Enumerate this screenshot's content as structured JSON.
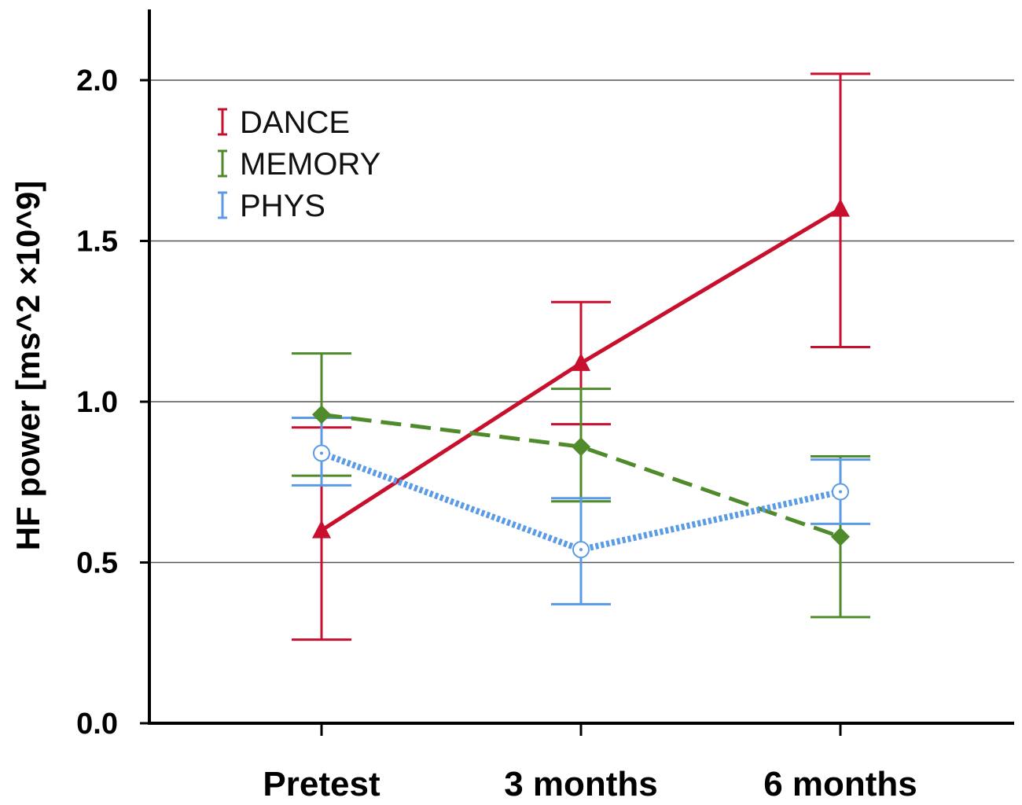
{
  "chart_data": {
    "type": "line",
    "title": "",
    "xlabel": "",
    "ylabel": "HF power [ms^2 ×10^9]",
    "categories": [
      "Pretest",
      "3 months",
      "6 months"
    ],
    "ylim": [
      0.0,
      2.2
    ],
    "yticks": [
      "0.0",
      "0.5",
      "1.0",
      "1.5",
      "2.0"
    ],
    "grid": true,
    "legend_position": "top-left",
    "series": [
      {
        "name": "DANCE",
        "color": "#c8102e",
        "line_style": "solid",
        "marker": "triangle",
        "values": [
          0.6,
          1.12,
          1.6
        ],
        "error_low": [
          0.26,
          0.93,
          1.17
        ],
        "error_high": [
          0.92,
          1.31,
          2.02
        ]
      },
      {
        "name": "MEMORY",
        "color": "#4f8a2b",
        "line_style": "dashed",
        "marker": "diamond",
        "values": [
          0.96,
          0.86,
          0.58
        ],
        "error_low": [
          0.77,
          0.69,
          0.33
        ],
        "error_high": [
          1.15,
          1.04,
          0.83
        ]
      },
      {
        "name": "PHYS",
        "color": "#5b9be6",
        "line_style": "dotted",
        "marker": "open-circle",
        "values": [
          0.84,
          0.54,
          0.72
        ],
        "error_low": [
          0.74,
          0.37,
          0.62
        ],
        "error_high": [
          0.95,
          0.7,
          0.82
        ]
      }
    ]
  }
}
